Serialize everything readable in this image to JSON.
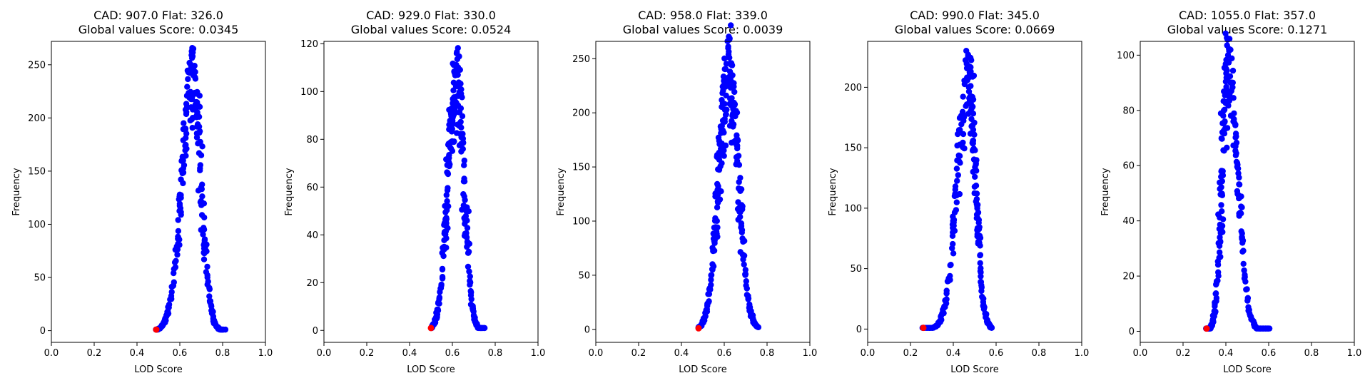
{
  "chart_data": [
    {
      "type": "scatter",
      "title_line1": "CAD: 907.0 Flat: 326.0",
      "title_line2": "Global values Score: 0.0345",
      "xlabel": "LOD Score",
      "ylabel": "Frequency",
      "xlim": [
        0,
        1
      ],
      "ylim": [
        -11,
        272
      ],
      "xticks": [
        "0.0",
        "0.2",
        "0.4",
        "0.6",
        "0.8",
        "1.0"
      ],
      "yticks": [
        0,
        50,
        100,
        150,
        200,
        250
      ],
      "peak": {
        "x": 0.66,
        "y": 258,
        "left_base": 0.49,
        "right_base": 0.81,
        "left_spread": 0.09,
        "right_spread": 0.07
      },
      "highlight": {
        "x": 0.49,
        "y": 1,
        "color": "#ff0000"
      },
      "series_color": "#0000ff"
    },
    {
      "type": "scatter",
      "title_line1": "CAD: 929.0 Flat: 330.0",
      "title_line2": "Global values Score: 0.0524",
      "xlabel": "LOD Score",
      "ylabel": "Frequency",
      "xlim": [
        0,
        1
      ],
      "ylim": [
        -5,
        121
      ],
      "xticks": [
        "0.0",
        "0.2",
        "0.4",
        "0.6",
        "0.8",
        "1.0"
      ],
      "yticks": [
        0,
        20,
        40,
        60,
        80,
        100,
        120
      ],
      "peak": {
        "x": 0.62,
        "y": 116,
        "left_base": 0.5,
        "right_base": 0.75,
        "left_spread": 0.07,
        "right_spread": 0.06
      },
      "highlight": {
        "x": 0.5,
        "y": 1,
        "color": "#ff0000"
      },
      "series_color": "#0000ff"
    },
    {
      "type": "scatter",
      "title_line1": "CAD: 958.0 Flat: 339.0",
      "title_line2": "Global values Score: 0.0039",
      "xlabel": "LOD Score",
      "ylabel": "Frequency",
      "xlim": [
        0,
        1
      ],
      "ylim": [
        -12,
        266
      ],
      "xticks": [
        "0.0",
        "0.2",
        "0.4",
        "0.6",
        "0.8",
        "1.0"
      ],
      "yticks": [
        0,
        50,
        100,
        150,
        200,
        250
      ],
      "peak": {
        "x": 0.62,
        "y": 254,
        "left_base": 0.48,
        "right_base": 0.76,
        "left_spread": 0.08,
        "right_spread": 0.08
      },
      "highlight": {
        "x": 0.48,
        "y": 1,
        "color": "#ff0000"
      },
      "series_color": "#0000ff"
    },
    {
      "type": "scatter",
      "title_line1": "CAD: 990.0 Flat: 345.0",
      "title_line2": "Global values Score: 0.0669",
      "xlabel": "LOD Score",
      "ylabel": "Frequency",
      "xlim": [
        0,
        1
      ],
      "ylim": [
        -11,
        238
      ],
      "xticks": [
        "0.0",
        "0.2",
        "0.4",
        "0.6",
        "0.8",
        "1.0"
      ],
      "yticks": [
        0,
        50,
        100,
        150,
        200
      ],
      "peak": {
        "x": 0.47,
        "y": 226,
        "left_base": 0.26,
        "right_base": 0.58,
        "left_spread": 0.09,
        "right_spread": 0.06
      },
      "highlight": {
        "x": 0.26,
        "y": 1,
        "color": "#ff0000"
      },
      "series_color": "#0000ff"
    },
    {
      "type": "scatter",
      "title_line1": "CAD: 1055.0 Flat: 357.0",
      "title_line2": "Global values Score: 0.1271",
      "xlabel": "LOD Score",
      "ylabel": "Frequency",
      "xlim": [
        0,
        1
      ],
      "ylim": [
        -4,
        105
      ],
      "xticks": [
        "0.0",
        "0.2",
        "0.4",
        "0.6",
        "0.8",
        "1.0"
      ],
      "yticks": [
        0,
        20,
        40,
        60,
        80,
        100
      ],
      "peak": {
        "x": 0.41,
        "y": 100,
        "left_base": 0.31,
        "right_base": 0.6,
        "left_spread": 0.05,
        "right_spread": 0.08
      },
      "highlight": {
        "x": 0.31,
        "y": 1,
        "color": "#ff0000"
      },
      "series_color": "#0000ff"
    }
  ]
}
